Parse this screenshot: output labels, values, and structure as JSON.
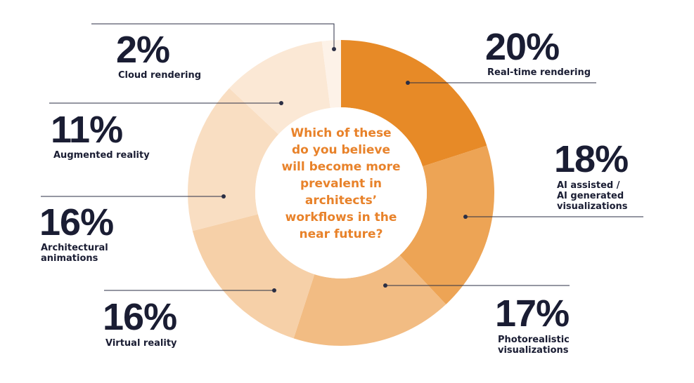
{
  "chart_data": {
    "type": "pie",
    "donut": true,
    "center_text": "Which of these\ndo you believe\nwill become more\nprevalent in\narchitects’\nworkflows in the\nnear future?",
    "slices": [
      {
        "label": "Real-time rendering",
        "value": 20,
        "value_label": "20%",
        "color": "#e78a27"
      },
      {
        "label": "AI assisted /\nAI generated\nvisualizations",
        "value": 18,
        "value_label": "18%",
        "color": "#eda455"
      },
      {
        "label": "Photorealistic\nvisualizations",
        "value": 17,
        "value_label": "17%",
        "color": "#f2bc83"
      },
      {
        "label": "Virtual reality",
        "value": 16,
        "value_label": "16%",
        "color": "#f6d0a8"
      },
      {
        "label": "Architectural\nanimations",
        "value": 16,
        "value_label": "16%",
        "color": "#f9dec2"
      },
      {
        "label": "Augmented reality",
        "value": 11,
        "value_label": "11%",
        "color": "#fbe8d5"
      },
      {
        "label": "Cloud rendering",
        "value": 2,
        "value_label": "2%",
        "color": "#fdf2e8"
      }
    ]
  },
  "colors": {
    "text_dark": "#1a1d33",
    "question": "#e8822a",
    "leader": "#2b2f45"
  }
}
